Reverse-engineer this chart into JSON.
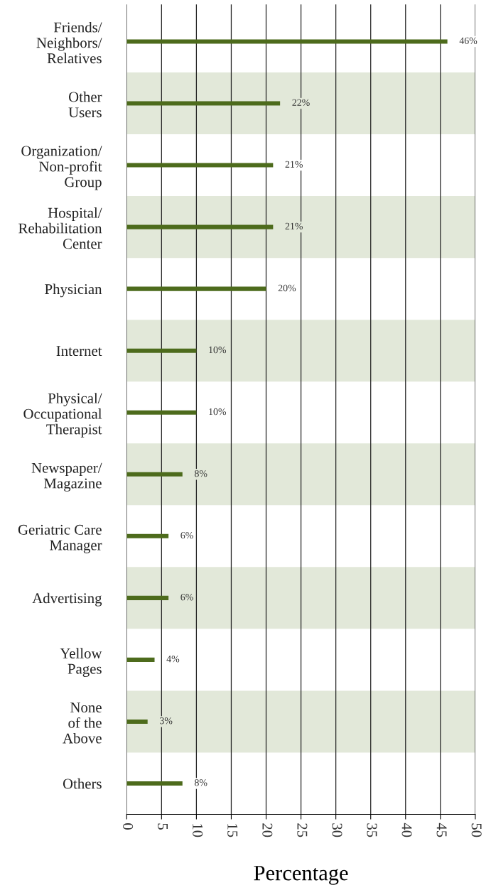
{
  "chart_data": {
    "type": "bar",
    "orientation": "horizontal",
    "xlabel": "Percentage",
    "categories": [
      "Friends/\nNeighbors/\nRelatives",
      "Other\nUsers",
      "Organization/\nNon-profit\nGroup",
      "Hospital/\nRehabilitation\nCenter",
      "Physician",
      "Internet",
      "Physical/\nOccupational\nTherapist",
      "Newspaper/\nMagazine",
      "Geriatric Care\nManager",
      "Advertising",
      "Yellow\nPages",
      "None\nof the\nAbove",
      "Others"
    ],
    "series": [
      {
        "color": "#4d6b1c",
        "values": [
          46,
          22,
          21,
          21,
          20,
          10,
          10,
          8,
          6,
          6,
          4,
          3,
          8
        ],
        "value_labels": [
          "46%",
          "22%",
          "21%",
          "21%",
          "20%",
          "10%",
          "10%",
          "8%",
          "6%",
          "6%",
          "4%",
          "3%",
          "8%"
        ]
      }
    ],
    "xlim": [
      0,
      50
    ],
    "xticks": [
      0,
      5,
      10,
      15,
      20,
      25,
      30,
      35,
      40,
      45,
      50
    ],
    "grid": "x",
    "legend": false,
    "bands": [
      {
        "axis": "y",
        "from": "Other\nUsers",
        "to": "Other\nUsers",
        "color": "#e2e8d9"
      },
      {
        "axis": "y",
        "from": "Hospital/\nRehabilitation\nCenter",
        "to": "Hospital/\nRehabilitation\nCenter",
        "color": "#e2e8d9"
      },
      {
        "axis": "y",
        "from": "Internet",
        "to": "Internet",
        "color": "#e2e8d9"
      },
      {
        "axis": "y",
        "from": "Newspaper/\nMagazine",
        "to": "Newspaper/\nMagazine",
        "color": "#e2e8d9"
      },
      {
        "axis": "y",
        "from": "Advertising",
        "to": "Advertising",
        "color": "#e2e8d9"
      },
      {
        "axis": "y",
        "from": "None\nof the\nAbove",
        "to": "None\nof the\nAbove",
        "color": "#e2e8d9"
      }
    ]
  }
}
